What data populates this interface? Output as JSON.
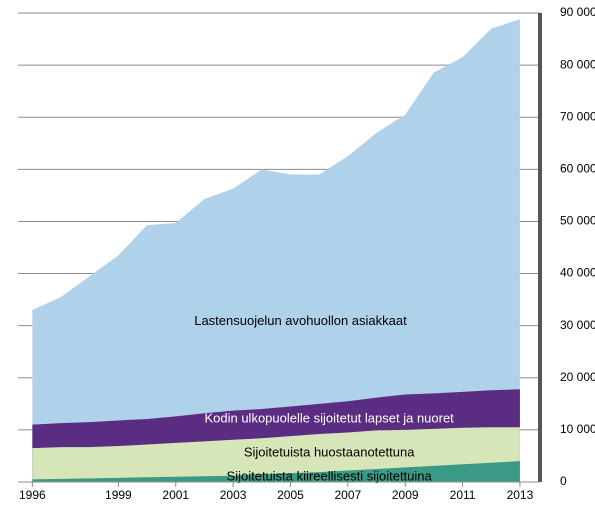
{
  "chart_data": {
    "type": "area",
    "x": [
      1996,
      1997,
      1998,
      1999,
      2000,
      2001,
      2002,
      2003,
      2004,
      2005,
      2006,
      2007,
      2008,
      2009,
      2010,
      2011,
      2012,
      2013
    ],
    "series": [
      {
        "name": "Lastensuojelun avohuollon asiakkaat",
        "color": "#b0d1ea",
        "label_color": "#000000",
        "values": [
          33000,
          35500,
          39500,
          43500,
          49300,
          49700,
          54300,
          56300,
          60000,
          59000,
          59000,
          62500,
          67000,
          70500,
          78600,
          81500,
          87000,
          88800
        ]
      },
      {
        "name": "Kodin ulkopuolelle sijoitetut lapset ja nuoret",
        "color": "#5a2d82",
        "label_color": "#ffffff",
        "values": [
          11000,
          11300,
          11500,
          11800,
          12100,
          12600,
          13200,
          13700,
          14000,
          14500,
          15000,
          15500,
          16200,
          16800,
          17000,
          17300,
          17600,
          17800
        ]
      },
      {
        "name": "Sijoitetuista huostaanotettuna",
        "color": "#d7e6b9",
        "label_color": "#000000",
        "values": [
          6500,
          6700,
          6700,
          6900,
          7200,
          7500,
          7800,
          8100,
          8400,
          8800,
          9200,
          9500,
          9900,
          10000,
          10200,
          10400,
          10500,
          10500
        ]
      },
      {
        "name": "Sijoitetuista kiireellisesti sijoitettuina",
        "color": "#3a9a86",
        "label_color": "#000000",
        "values": [
          500,
          600,
          700,
          800,
          900,
          1000,
          1100,
          1200,
          1500,
          1700,
          1900,
          2200,
          2500,
          2800,
          3100,
          3400,
          3700,
          4000
        ]
      }
    ],
    "xlim": [
      1995.5,
      2013.7
    ],
    "xticks": [
      1996,
      1999,
      2001,
      2003,
      2005,
      2007,
      2009,
      2011,
      2013
    ],
    "ylim": [
      0,
      90000
    ],
    "yticks": [
      0,
      {
        "value": 10000,
        "label": "10 000"
      },
      {
        "value": 20000,
        "label": "20 000"
      },
      {
        "value": 30000,
        "label": "30 000"
      },
      {
        "value": 40000,
        "label": "40 000"
      },
      {
        "value": 50000,
        "label": "50 000"
      },
      {
        "value": 60000,
        "label": "60 000"
      },
      {
        "value": 70000,
        "label": "70 000"
      },
      {
        "value": 80000,
        "label": "80 000"
      },
      {
        "value": 90000,
        "label": "90 000"
      }
    ],
    "grid": true,
    "y_axis_side": "right"
  }
}
